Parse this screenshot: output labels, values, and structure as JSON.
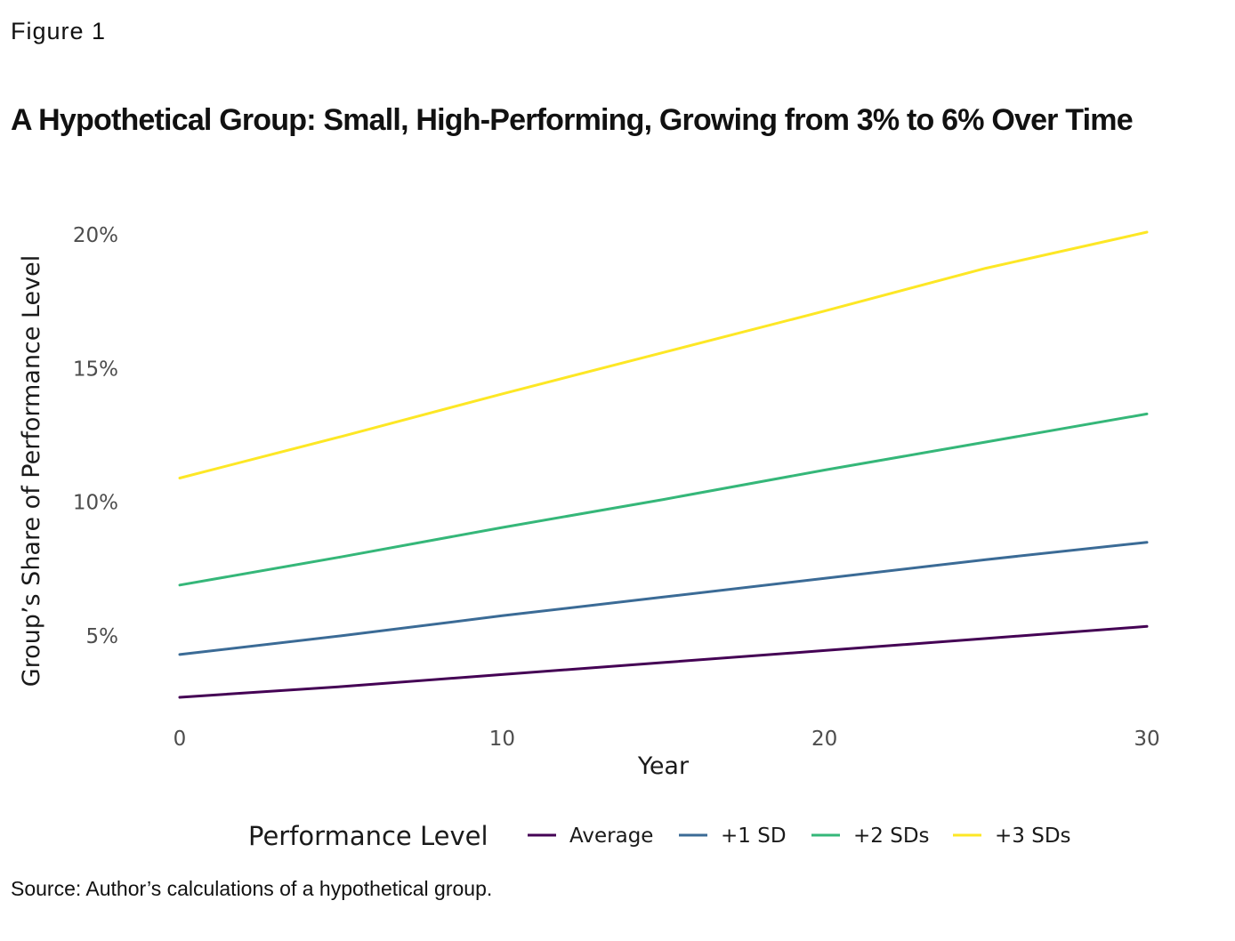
{
  "figure_label": "Figure 1",
  "title": "A Hypothetical Group: Small, High-Performing, Growing from 3% to 6% Over Time",
  "source": "Source: Author’s calculations of a hypothetical group.",
  "chart_data": {
    "type": "line",
    "title": "A Hypothetical Group: Small, High-Performing, Growing from 3% to 6% Over Time",
    "xlabel": "Year",
    "ylabel": "Group’s Share of Performance Level",
    "xlim": [
      0,
      30
    ],
    "ylim": [
      2.5,
      20.5
    ],
    "x_ticks": [
      0,
      10,
      20,
      30
    ],
    "x_tick_labels": [
      "0",
      "10",
      "20",
      "30"
    ],
    "y_ticks": [
      5,
      10,
      15,
      20
    ],
    "y_tick_labels": [
      "5%",
      "10%",
      "15%",
      "20%"
    ],
    "grid": false,
    "legend_position": "bottom",
    "legend_title": "Performance Level",
    "x": [
      0,
      5,
      10,
      15,
      20,
      25,
      30
    ],
    "series": [
      {
        "name": "Average",
        "color": "#440154",
        "values": [
          2.7,
          3.1,
          3.55,
          4.0,
          4.45,
          4.9,
          5.35
        ]
      },
      {
        "name": "+1 SD",
        "color": "#3b6b96",
        "values": [
          4.3,
          5.0,
          5.75,
          6.45,
          7.15,
          7.85,
          8.5
        ]
      },
      {
        "name": "+2 SDs",
        "color": "#35b779",
        "values": [
          6.9,
          7.95,
          9.05,
          10.1,
          11.2,
          12.25,
          13.3
        ]
      },
      {
        "name": "+3 SDs",
        "color": "#fde725",
        "values": [
          10.9,
          12.45,
          14.05,
          15.6,
          17.15,
          18.75,
          20.1
        ]
      }
    ]
  }
}
